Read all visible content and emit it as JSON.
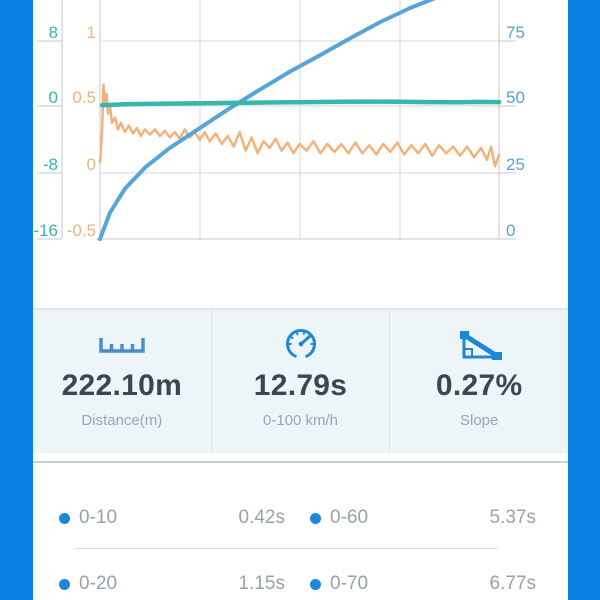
{
  "chart_data": {
    "type": "line",
    "title": "",
    "grid": true,
    "legend": false,
    "x_axis": {
      "tick_labels_visible": false,
      "visible_range": [
        0,
        4
      ]
    },
    "axes": {
      "left1": {
        "tick_labels": [
          "8",
          "0",
          "-8",
          "-16"
        ],
        "tick_values": [
          8,
          0,
          -8,
          -16
        ],
        "color": "#3ab5ab"
      },
      "left2": {
        "tick_labels": [
          "1",
          "0.5",
          "0",
          "-0.5"
        ],
        "tick_values": [
          1,
          0.5,
          0,
          -0.5
        ],
        "color": "#ecb27c"
      },
      "right": {
        "tick_labels": [
          "75",
          "50",
          "25",
          "0"
        ],
        "tick_values": [
          75,
          50,
          25,
          0
        ],
        "color": "#57a2d6"
      }
    },
    "series": [
      {
        "name": "acceleration-trace",
        "axis": "left2",
        "color": "#f1b27c",
        "stroke_width": 2.5,
        "points": [
          [
            0,
            0.08
          ],
          [
            0.02,
            0.3
          ],
          [
            0.035,
            0.67
          ],
          [
            0.05,
            0.52
          ],
          [
            0.065,
            0.6
          ],
          [
            0.08,
            0.45
          ],
          [
            0.1,
            0.5
          ],
          [
            0.12,
            0.38
          ],
          [
            0.15,
            0.42
          ],
          [
            0.18,
            0.33
          ],
          [
            0.21,
            0.38
          ],
          [
            0.25,
            0.31
          ],
          [
            0.29,
            0.36
          ],
          [
            0.33,
            0.3
          ],
          [
            0.37,
            0.34
          ],
          [
            0.41,
            0.28
          ],
          [
            0.45,
            0.33
          ],
          [
            0.5,
            0.29
          ],
          [
            0.55,
            0.33
          ],
          [
            0.6,
            0.28
          ],
          [
            0.65,
            0.32
          ],
          [
            0.7,
            0.27
          ],
          [
            0.75,
            0.31
          ],
          [
            0.8,
            0.26
          ],
          [
            0.85,
            0.33
          ],
          [
            0.9,
            0.27
          ],
          [
            0.95,
            0.31
          ],
          [
            1,
            0.25
          ],
          [
            1.05,
            0.31
          ],
          [
            1.1,
            0.24
          ],
          [
            1.16,
            0.3
          ],
          [
            1.22,
            0.22
          ],
          [
            1.28,
            0.28
          ],
          [
            1.34,
            0.2
          ],
          [
            1.4,
            0.31
          ],
          [
            1.46,
            0.17
          ],
          [
            1.52,
            0.27
          ],
          [
            1.58,
            0.15
          ],
          [
            1.64,
            0.24
          ],
          [
            1.7,
            0.19
          ],
          [
            1.76,
            0.26
          ],
          [
            1.82,
            0.17
          ],
          [
            1.88,
            0.23
          ],
          [
            1.94,
            0.15
          ],
          [
            2,
            0.22
          ],
          [
            2.07,
            0.17
          ],
          [
            2.14,
            0.24
          ],
          [
            2.21,
            0.15
          ],
          [
            2.28,
            0.22
          ],
          [
            2.35,
            0.16
          ],
          [
            2.42,
            0.22
          ],
          [
            2.49,
            0.15
          ],
          [
            2.56,
            0.23
          ],
          [
            2.63,
            0.15
          ],
          [
            2.7,
            0.21
          ],
          [
            2.77,
            0.14
          ],
          [
            2.84,
            0.22
          ],
          [
            2.91,
            0.16
          ],
          [
            2.98,
            0.23
          ],
          [
            3.05,
            0.14
          ],
          [
            3.12,
            0.21
          ],
          [
            3.19,
            0.15
          ],
          [
            3.26,
            0.22
          ],
          [
            3.33,
            0.13
          ],
          [
            3.4,
            0.21
          ],
          [
            3.47,
            0.15
          ],
          [
            3.54,
            0.2
          ],
          [
            3.61,
            0.13
          ],
          [
            3.68,
            0.2
          ],
          [
            3.75,
            0.12
          ],
          [
            3.82,
            0.19
          ],
          [
            3.88,
            0.1
          ],
          [
            3.92,
            0.2
          ],
          [
            3.96,
            0.05
          ],
          [
            4,
            0.14
          ]
        ]
      },
      {
        "name": "speed-curve",
        "axis": "right",
        "color": "#58a3d8",
        "stroke_width": 4,
        "points": [
          [
            0,
            0
          ],
          [
            0.1,
            10
          ],
          [
            0.25,
            19
          ],
          [
            0.45,
            27
          ],
          [
            0.7,
            34.5
          ],
          [
            1,
            42
          ],
          [
            1.3,
            49.5
          ],
          [
            1.6,
            56.5
          ],
          [
            1.9,
            63.3
          ],
          [
            2.21,
            69.7
          ],
          [
            2.51,
            76.1
          ],
          [
            2.81,
            82.2
          ],
          [
            3.11,
            87.5
          ],
          [
            3.41,
            92
          ]
        ]
      },
      {
        "name": "baseline-trace",
        "axis": "left1",
        "color": "#35b7ab",
        "stroke_width": 4.5,
        "points": [
          [
            0.02,
            0.22
          ],
          [
            0.3,
            0.35
          ],
          [
            0.6,
            0.4
          ],
          [
            0.9,
            0.44
          ],
          [
            1.2,
            0.48
          ],
          [
            1.5,
            0.52
          ],
          [
            1.8,
            0.56
          ],
          [
            2.1,
            0.6
          ],
          [
            2.4,
            0.64
          ],
          [
            2.7,
            0.66
          ],
          [
            3,
            0.64
          ],
          [
            3.3,
            0.6
          ],
          [
            3.6,
            0.57
          ],
          [
            3.8,
            0.62
          ],
          [
            4,
            0.6
          ]
        ]
      }
    ]
  },
  "stats": [
    {
      "icon": "ruler-icon",
      "value": "222.10m",
      "label": "Distance(m)"
    },
    {
      "icon": "speedometer-icon",
      "value": "12.79s",
      "label": "0-100 km/h"
    },
    {
      "icon": "slope-icon",
      "value": "0.27%",
      "label": "Slope"
    }
  ],
  "splits": {
    "rows": [
      {
        "left": {
          "label": "0-10",
          "value": "0.42s"
        },
        "right": {
          "label": "0-60",
          "value": "5.37s"
        }
      },
      {
        "left": {
          "label": "0-20",
          "value": "1.15s"
        },
        "right": {
          "label": "0-70",
          "value": "6.77s"
        }
      }
    ]
  },
  "theme": {
    "frame_blue": "#0a82e4",
    "panel_bg": "#eef5f9",
    "value_text": "#3b4750",
    "muted_text": "#98a1a9",
    "bullet_blue": "#1c87da"
  }
}
